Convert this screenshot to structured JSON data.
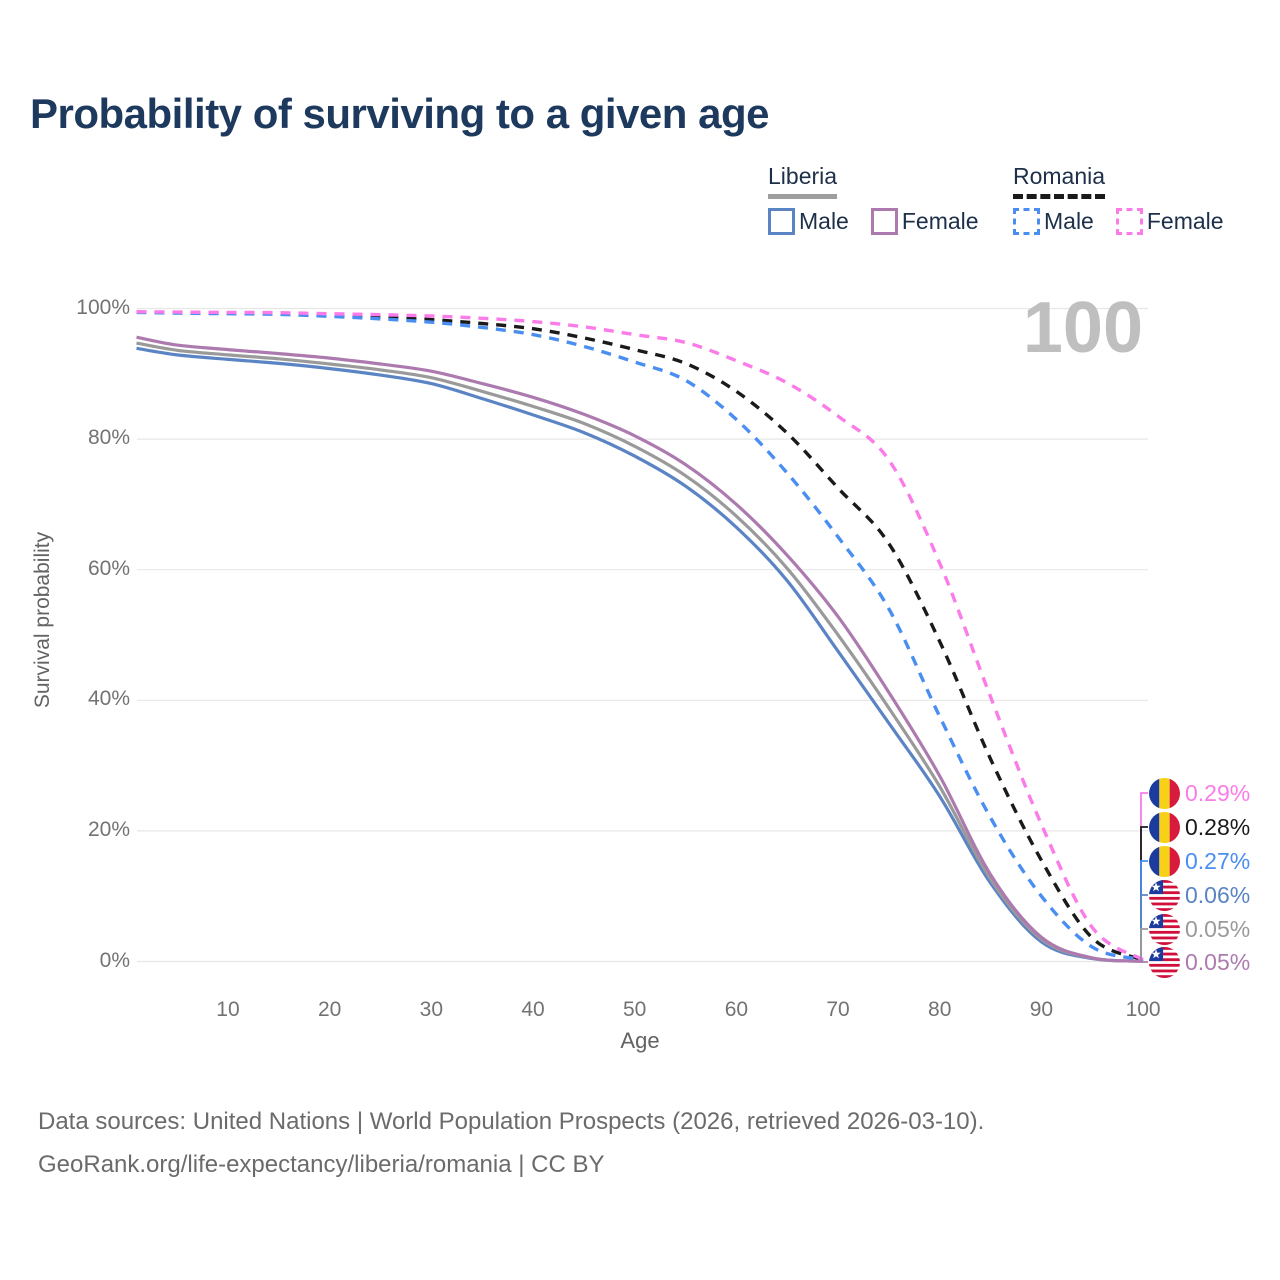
{
  "title": "Probability of surviving to a given age",
  "watermark_age": "100",
  "y_axis": {
    "label": "Survival probability",
    "ticks": [
      "0%",
      "20%",
      "40%",
      "60%",
      "80%",
      "100%"
    ]
  },
  "x_axis": {
    "label": "Age",
    "ticks": [
      10,
      20,
      30,
      40,
      50,
      60,
      70,
      80,
      90,
      100
    ]
  },
  "legend": {
    "groups": [
      {
        "country": "Liberia",
        "line_style": "solid",
        "rule_color": "#9e9e9e",
        "items": [
          {
            "label": "Male",
            "color": "#5b84c5"
          },
          {
            "label": "Female",
            "color": "#ad7ab0"
          }
        ]
      },
      {
        "country": "Romania",
        "line_style": "dashed",
        "rule_color": "#1a1a1a",
        "items": [
          {
            "label": "Male",
            "color": "#4a8ef2"
          },
          {
            "label": "Female",
            "color": "#fb7ce8"
          }
        ]
      }
    ]
  },
  "end_labels": [
    {
      "flag": "romania",
      "value": "0.29%",
      "color": "#fb7ce8"
    },
    {
      "flag": "romania",
      "value": "0.28%",
      "color": "#1a1a1a"
    },
    {
      "flag": "romania",
      "value": "0.27%",
      "color": "#4a8ef2"
    },
    {
      "flag": "liberia",
      "value": "0.06%",
      "color": "#5b84c5"
    },
    {
      "flag": "liberia",
      "value": "0.05%",
      "color": "#9a9a9a"
    },
    {
      "flag": "liberia",
      "value": "0.05%",
      "color": "#ad7ab0"
    }
  ],
  "footer": {
    "line1": "Data sources: United Nations | World Population Prospects (2026, retrieved 2026-03-10).",
    "line2": "GeoRank.org/life-expectancy/liberia/romania | CC BY"
  },
  "chart_data": {
    "type": "line",
    "title": "Probability of surviving to a given age",
    "xlabel": "Age",
    "ylabel": "Survival probability",
    "xlim": [
      0,
      100
    ],
    "ylim": [
      0,
      100
    ],
    "grid": true,
    "legend_position": "top-right",
    "x": [
      1,
      5,
      10,
      15,
      20,
      25,
      30,
      35,
      40,
      45,
      50,
      55,
      60,
      65,
      70,
      75,
      80,
      85,
      90,
      95,
      100
    ],
    "series": [
      {
        "name": "Liberia Male",
        "color": "#5b84c5",
        "dashed": false,
        "in_legend": true,
        "end_value_pct": 0.06,
        "values": [
          93.9,
          92.9,
          92.2,
          91.6,
          90.8,
          89.8,
          88.5,
          86.2,
          83.7,
          81.0,
          77.4,
          72.8,
          66.5,
          58.3,
          47.5,
          36.5,
          25.3,
          12.0,
          3.0,
          0.45,
          0.06
        ]
      },
      {
        "name": "Liberia (both sexes)",
        "color": "#9a9a9a",
        "dashed": false,
        "in_legend": false,
        "end_value_pct": 0.05,
        "values": [
          94.7,
          93.6,
          92.9,
          92.3,
          91.5,
          90.6,
          89.4,
          87.3,
          85.0,
          82.4,
          78.9,
          74.4,
          68.2,
          60.2,
          50.0,
          38.8,
          26.8,
          12.6,
          3.4,
          0.5,
          0.05
        ]
      },
      {
        "name": "Liberia Female",
        "color": "#ad7ab0",
        "dashed": false,
        "in_legend": true,
        "end_value_pct": 0.05,
        "values": [
          95.6,
          94.4,
          93.7,
          93.1,
          92.4,
          91.5,
          90.4,
          88.5,
          86.4,
          83.8,
          80.5,
          76.1,
          70.0,
          62.2,
          52.8,
          41.2,
          28.4,
          13.3,
          3.7,
          0.55,
          0.05
        ]
      },
      {
        "name": "Romania (both sexes)",
        "color": "#1a1a1a",
        "dashed": true,
        "in_legend": false,
        "end_value_pct": 0.28,
        "values": [
          99.45,
          99.4,
          99.3,
          99.2,
          99.0,
          98.7,
          98.3,
          97.7,
          96.9,
          95.5,
          93.7,
          91.6,
          87.3,
          80.9,
          72.5,
          64.0,
          49.0,
          31.0,
          15.5,
          3.6,
          0.28
        ]
      },
      {
        "name": "Romania Male",
        "color": "#4a8ef2",
        "dashed": true,
        "in_legend": true,
        "end_value_pct": 0.27,
        "values": [
          99.4,
          99.3,
          99.2,
          99.1,
          98.8,
          98.4,
          97.9,
          97.1,
          96.0,
          94.2,
          91.8,
          89.0,
          83.0,
          74.8,
          65.0,
          54.0,
          37.5,
          22.0,
          10.0,
          2.2,
          0.27
        ]
      },
      {
        "name": "Romania Female",
        "color": "#fb7ce8",
        "dashed": true,
        "in_legend": true,
        "end_value_pct": 0.29,
        "values": [
          99.5,
          99.45,
          99.4,
          99.35,
          99.2,
          99.05,
          98.85,
          98.5,
          98.0,
          97.2,
          96.0,
          94.8,
          92.0,
          88.6,
          83.5,
          76.8,
          61.0,
          40.5,
          21.0,
          5.2,
          0.29
        ]
      }
    ]
  }
}
